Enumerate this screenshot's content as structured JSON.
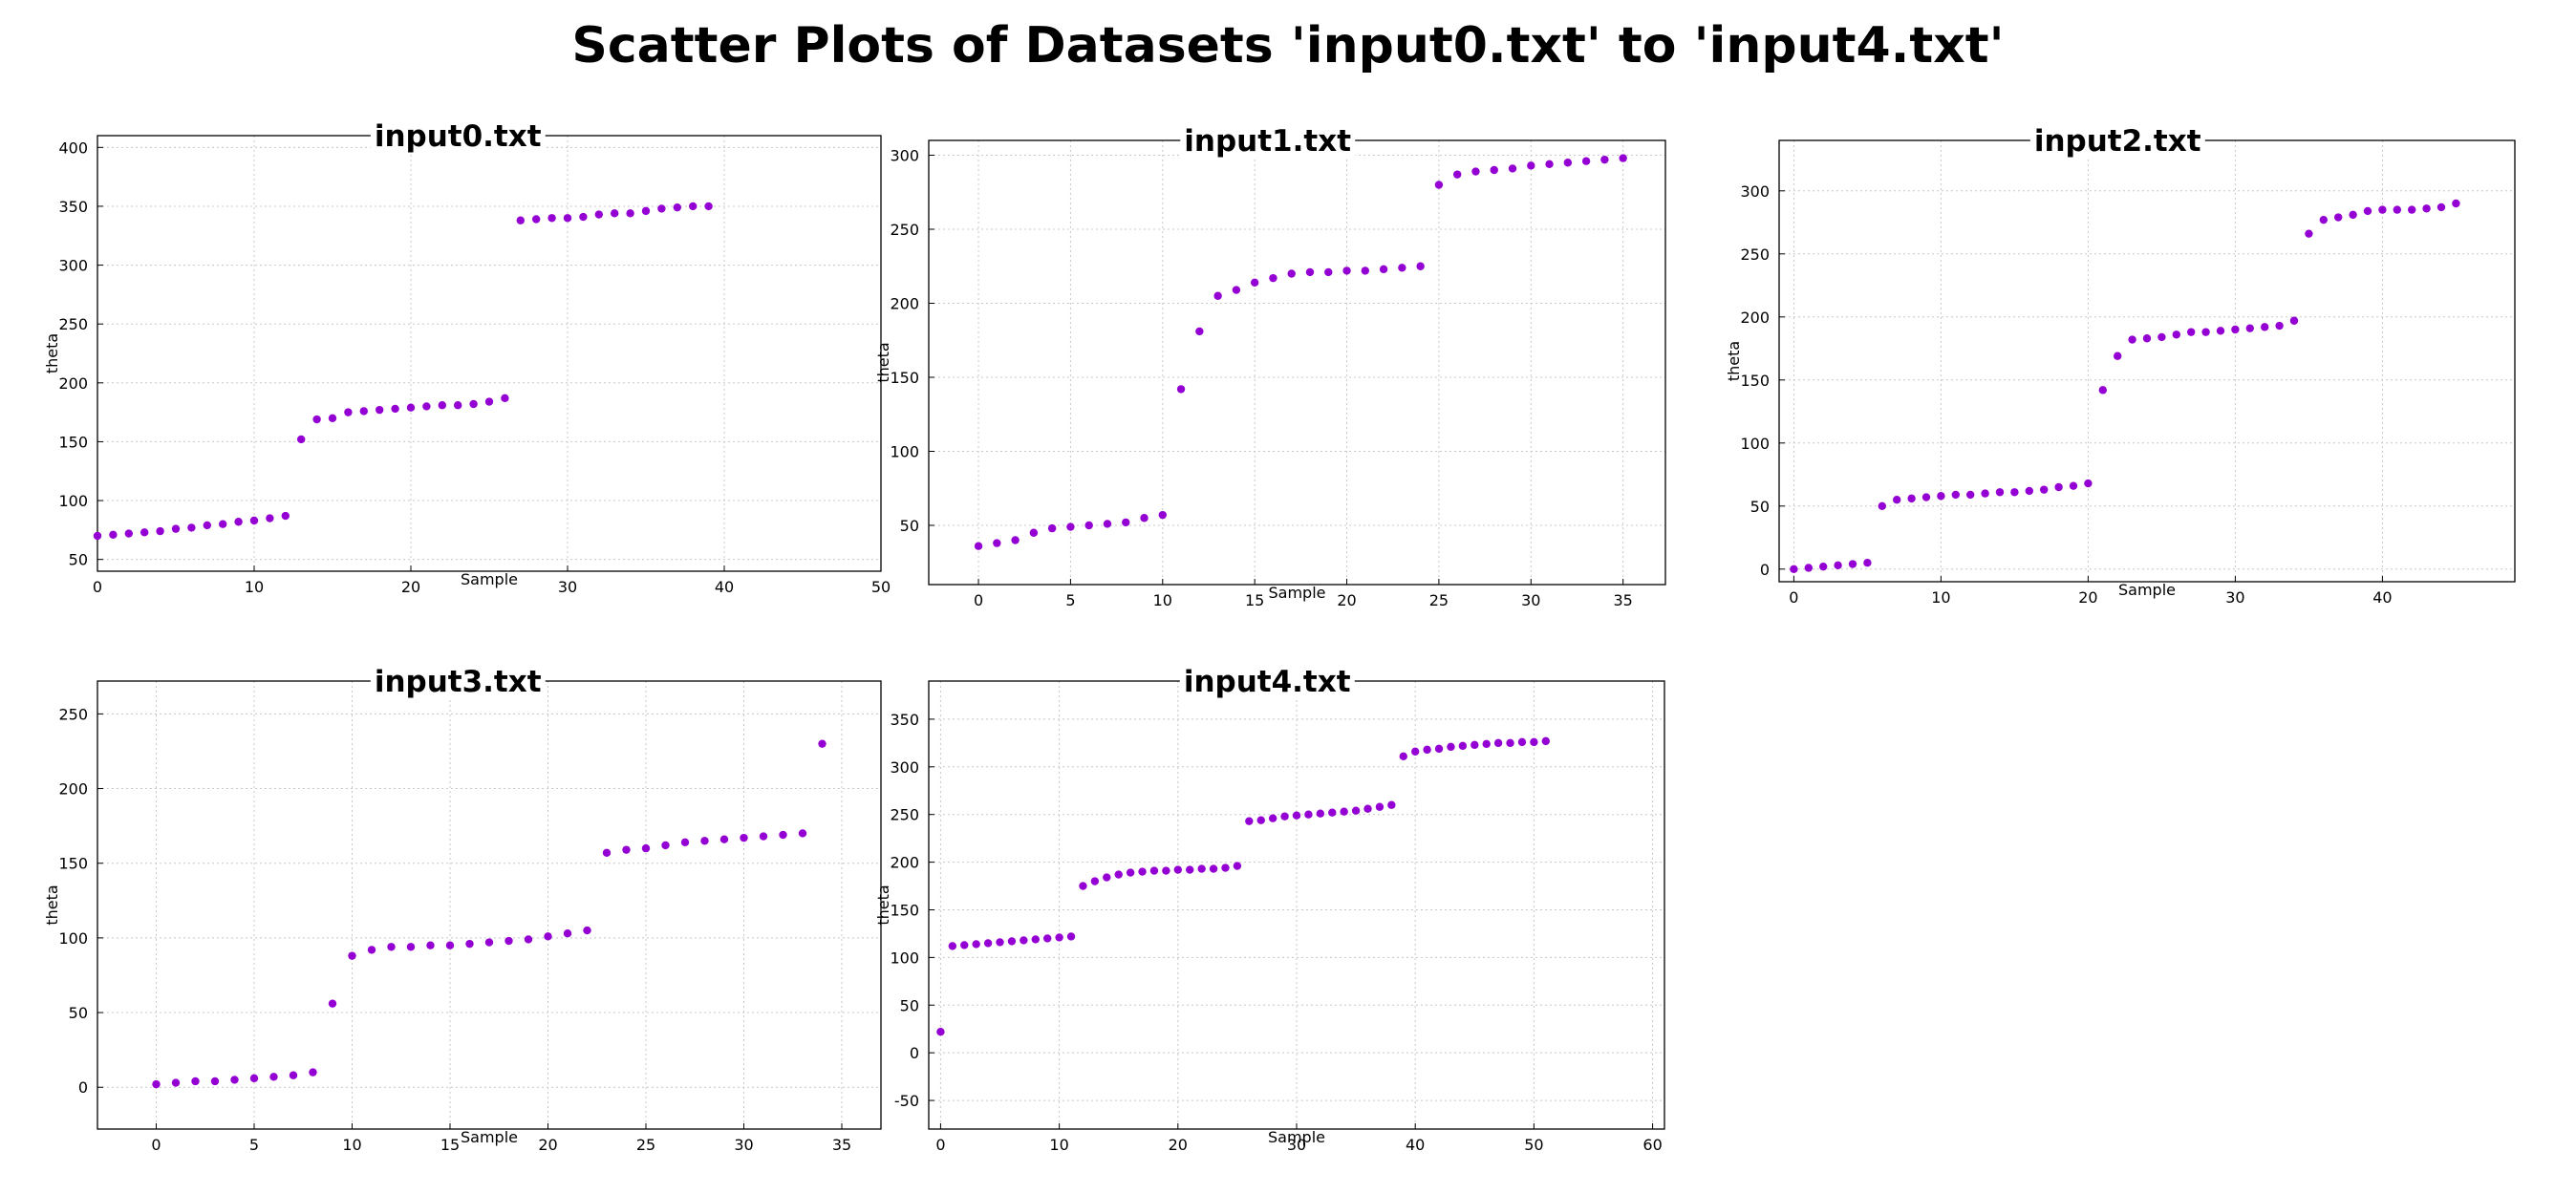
{
  "title": "Scatter Plots of Datasets 'input0.txt' to 'input4.txt'",
  "colors": {
    "points": "#9400d3",
    "grid": "#c8c8c8",
    "frame": "#000000"
  },
  "chart_data": [
    {
      "type": "scatter",
      "title": "input0.txt",
      "xlabel": "Sample",
      "ylabel": "theta",
      "xlim": [
        0,
        50
      ],
      "ylim": [
        40,
        410
      ],
      "xticks": [
        0,
        10,
        20,
        30,
        40,
        50
      ],
      "yticks": [
        50,
        100,
        150,
        200,
        250,
        300,
        350,
        400
      ],
      "grid": true,
      "x": [
        0,
        1,
        2,
        3,
        4,
        5,
        6,
        7,
        8,
        9,
        10,
        11,
        12,
        13,
        14,
        15,
        16,
        17,
        18,
        19,
        20,
        21,
        22,
        23,
        24,
        25,
        26,
        27,
        28,
        29,
        30,
        31,
        32,
        33,
        34,
        35,
        36,
        37,
        38,
        39
      ],
      "y": [
        70,
        71,
        72,
        73,
        74,
        76,
        77,
        79,
        80,
        82,
        83,
        85,
        87,
        152,
        169,
        170,
        175,
        176,
        177,
        178,
        179,
        180,
        181,
        181,
        182,
        184,
        187,
        338,
        339,
        340,
        340,
        341,
        343,
        344,
        344,
        346,
        348,
        349,
        350,
        350
      ]
    },
    {
      "type": "scatter",
      "title": "input1.txt",
      "xlabel": "Sample",
      "ylabel": "theta",
      "xlim": [
        -2.7,
        37.3
      ],
      "ylim": [
        10,
        310
      ],
      "xticks": [
        0,
        5,
        10,
        15,
        20,
        25,
        30,
        35
      ],
      "yticks": [
        50,
        100,
        150,
        200,
        250,
        300
      ],
      "grid": true,
      "x": [
        0,
        1,
        2,
        3,
        4,
        5,
        6,
        7,
        8,
        9,
        10,
        11,
        12,
        13,
        14,
        15,
        16,
        17,
        18,
        19,
        20,
        21,
        22,
        23,
        24,
        25,
        26,
        27,
        28,
        29,
        30,
        31,
        32,
        33,
        34,
        35
      ],
      "y": [
        36,
        38,
        40,
        45,
        48,
        49,
        50,
        51,
        52,
        55,
        57,
        142,
        181,
        205,
        209,
        214,
        217,
        220,
        221,
        221,
        222,
        222,
        223,
        224,
        225,
        280,
        287,
        289,
        290,
        291,
        293,
        294,
        295,
        296,
        297,
        298
      ]
    },
    {
      "type": "scatter",
      "title": "input2.txt",
      "xlabel": "Sample",
      "ylabel": "theta",
      "xlim": [
        -1,
        49
      ],
      "ylim": [
        -10,
        340
      ],
      "xticks": [
        0,
        10,
        20,
        30,
        40
      ],
      "yticks": [
        0,
        50,
        100,
        150,
        200,
        250,
        300
      ],
      "grid": true,
      "x": [
        0,
        1,
        2,
        3,
        4,
        5,
        6,
        7,
        8,
        9,
        10,
        11,
        12,
        13,
        14,
        15,
        16,
        17,
        18,
        19,
        20,
        21,
        22,
        23,
        24,
        25,
        26,
        27,
        28,
        29,
        30,
        31,
        32,
        33,
        34,
        35,
        36,
        37,
        38,
        39,
        40,
        41,
        42,
        43,
        44,
        45
      ],
      "y": [
        0,
        1,
        2,
        3,
        4,
        5,
        50,
        55,
        56,
        57,
        58,
        59,
        59,
        60,
        61,
        61,
        62,
        63,
        65,
        66,
        68,
        142,
        169,
        182,
        183,
        184,
        186,
        188,
        188,
        189,
        190,
        191,
        192,
        193,
        197,
        266,
        277,
        279,
        281,
        284,
        285,
        285,
        285,
        286,
        287,
        290
      ]
    },
    {
      "type": "scatter",
      "title": "input3.txt",
      "xlabel": "Sample",
      "ylabel": "theta",
      "xlim": [
        -3,
        37
      ],
      "ylim": [
        -28,
        272
      ],
      "xticks": [
        0,
        5,
        10,
        15,
        20,
        25,
        30,
        35
      ],
      "yticks": [
        0,
        50,
        100,
        150,
        200,
        250
      ],
      "grid": true,
      "x": [
        0,
        1,
        2,
        3,
        4,
        5,
        6,
        7,
        8,
        9,
        10,
        11,
        12,
        13,
        14,
        15,
        16,
        17,
        18,
        19,
        20,
        21,
        22,
        23,
        24,
        25,
        26,
        27,
        28,
        29,
        30,
        31,
        32,
        33,
        34
      ],
      "y": [
        2,
        3,
        4,
        4,
        5,
        6,
        7,
        8,
        10,
        56,
        88,
        92,
        94,
        94,
        95,
        95,
        96,
        97,
        98,
        99,
        101,
        103,
        105,
        157,
        159,
        160,
        162,
        164,
        165,
        166,
        167,
        168,
        169,
        170,
        230
      ]
    },
    {
      "type": "scatter",
      "title": "input4.txt",
      "xlabel": "Sample",
      "ylabel": "theta",
      "xlim": [
        -1,
        61
      ],
      "ylim": [
        -80,
        390
      ],
      "xticks": [
        0,
        10,
        20,
        30,
        40,
        50,
        60
      ],
      "yticks": [
        -50,
        0,
        50,
        100,
        150,
        200,
        250,
        300,
        350
      ],
      "grid": true,
      "x": [
        0,
        1,
        2,
        3,
        4,
        5,
        6,
        7,
        8,
        9,
        10,
        11,
        12,
        13,
        14,
        15,
        16,
        17,
        18,
        19,
        20,
        21,
        22,
        23,
        24,
        25,
        26,
        27,
        28,
        29,
        30,
        31,
        32,
        33,
        34,
        35,
        36,
        37,
        38,
        39,
        40,
        41,
        42,
        43,
        44,
        45,
        46,
        47,
        48,
        49,
        50,
        51
      ],
      "y": [
        22,
        112,
        113,
        114,
        115,
        116,
        117,
        118,
        119,
        120,
        121,
        122,
        175,
        180,
        184,
        187,
        189,
        190,
        191,
        191,
        192,
        192,
        193,
        193,
        194,
        196,
        243,
        244,
        246,
        248,
        249,
        250,
        251,
        252,
        253,
        254,
        256,
        258,
        260,
        311,
        316,
        318,
        319,
        321,
        322,
        323,
        324,
        325,
        325,
        326,
        326,
        327
      ]
    }
  ]
}
